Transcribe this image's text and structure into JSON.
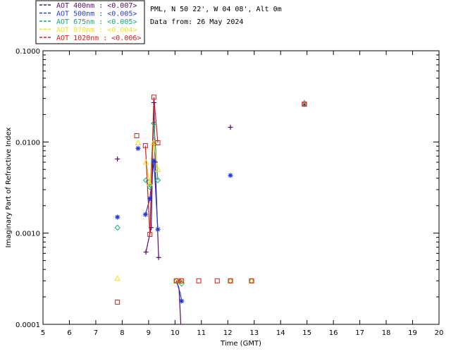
{
  "header": {
    "site": "PML, N 50 22', W 04 08', Alt 0m",
    "date": "Data from: 26 May 2024"
  },
  "chart_data": {
    "type": "scatter",
    "xlabel": "Time (GMT)",
    "ylabel": "Imaginary Part of Refractive Index",
    "xlim": [
      5,
      20
    ],
    "ylim": [
      0.0001,
      0.1
    ],
    "yscale": "log",
    "x_ticks": [
      "5",
      "6",
      "7",
      "8",
      "9",
      "10",
      "11",
      "12",
      "13",
      "14",
      "15",
      "16",
      "17",
      "18",
      "19",
      "20"
    ],
    "y_ticks": [
      "0.0001",
      "0.0010",
      "0.0100",
      "0.1000"
    ],
    "legend_placement": "top-left",
    "series": [
      {
        "name": "AOT  400nm : <0.007>",
        "color": "#5a0a6e",
        "marker": "plus",
        "points": [
          [
            7.82,
            0.0065
          ],
          [
            8.9,
            0.00062
          ],
          [
            9.1,
            0.00115
          ],
          [
            9.2,
            0.027
          ],
          [
            9.25,
            0.006
          ],
          [
            9.38,
            0.00054
          ],
          [
            10.2,
            0.0003
          ],
          [
            12.1,
            0.0145
          ],
          [
            14.9,
            0.027
          ]
        ],
        "line": [
          [
            8.9,
            0.00062
          ],
          [
            9.1,
            0.00115
          ],
          [
            9.2,
            0.027
          ],
          [
            9.25,
            0.006
          ],
          [
            9.38,
            0.00054
          ]
        ],
        "line2": [
          [
            10.05,
            0.0003
          ],
          [
            10.15,
            0.00025
          ],
          [
            10.22,
            0.0001
          ]
        ]
      },
      {
        "name": "AOT  500nm : <0.005>",
        "color": "#2238d6",
        "marker": "asterisk",
        "points": [
          [
            7.82,
            0.0015
          ],
          [
            8.6,
            0.0085
          ],
          [
            8.88,
            0.0016
          ],
          [
            9.05,
            0.0024
          ],
          [
            9.2,
            0.0062
          ],
          [
            9.35,
            0.0011
          ],
          [
            10.25,
            0.00018
          ],
          [
            12.1,
            0.0043
          ],
          [
            14.9,
            0.026
          ]
        ],
        "line": [
          [
            8.88,
            0.0016
          ],
          [
            9.05,
            0.0024
          ],
          [
            9.2,
            0.0062
          ],
          [
            9.35,
            0.0011
          ]
        ],
        "line2": [
          [
            10.05,
            0.0003
          ],
          [
            10.2,
            0.00022
          ],
          [
            10.25,
            0.00018
          ]
        ]
      },
      {
        "name": "AOT  675nm : <0.005>",
        "color": "#10a878",
        "marker": "diamond",
        "points": [
          [
            7.82,
            0.00115
          ],
          [
            8.9,
            0.0038
          ],
          [
            9.05,
            0.0032
          ],
          [
            9.2,
            0.016
          ],
          [
            9.35,
            0.0038
          ],
          [
            10.05,
            0.0003
          ],
          [
            10.25,
            0.00028
          ],
          [
            12.1,
            0.0003
          ],
          [
            12.9,
            0.0003
          ],
          [
            14.9,
            0.026
          ]
        ],
        "line": [
          [
            8.9,
            0.0038
          ],
          [
            9.05,
            0.0032
          ],
          [
            9.2,
            0.016
          ],
          [
            9.35,
            0.0038
          ]
        ],
        "line2": [
          [
            10.05,
            0.0003
          ],
          [
            10.25,
            0.00028
          ]
        ]
      },
      {
        "name": "AOT  870nm : <0.004>",
        "color": "#f0e020",
        "marker": "triangle",
        "points": [
          [
            7.82,
            0.00032
          ],
          [
            8.6,
            0.0098
          ],
          [
            8.9,
            0.006
          ],
          [
            9.05,
            0.0035
          ],
          [
            9.2,
            0.01
          ],
          [
            9.35,
            0.005
          ],
          [
            10.05,
            0.0003
          ],
          [
            10.25,
            0.0003
          ],
          [
            12.1,
            0.0003
          ],
          [
            12.9,
            0.0003
          ],
          [
            14.9,
            0.026
          ]
        ],
        "line": [
          [
            8.9,
            0.006
          ],
          [
            9.05,
            0.0035
          ],
          [
            9.2,
            0.01
          ],
          [
            9.35,
            0.005
          ]
        ],
        "line2": [
          [
            10.05,
            0.0003
          ],
          [
            10.25,
            0.0003
          ]
        ]
      },
      {
        "name": "AOT 1020nm : <0.006>",
        "color": "#e01818",
        "marker": "square",
        "points": [
          [
            7.82,
            0.000175
          ],
          [
            8.55,
            0.0117
          ],
          [
            8.88,
            0.0091
          ],
          [
            9.05,
            0.00097
          ],
          [
            9.2,
            0.031
          ],
          [
            9.35,
            0.0098
          ],
          [
            10.05,
            0.0003
          ],
          [
            10.25,
            0.0003
          ],
          [
            10.9,
            0.0003
          ],
          [
            11.6,
            0.0003
          ],
          [
            12.1,
            0.0003
          ],
          [
            12.9,
            0.0003
          ],
          [
            14.9,
            0.026
          ]
        ],
        "line": [
          [
            8.88,
            0.0091
          ],
          [
            9.05,
            0.00097
          ],
          [
            9.2,
            0.031
          ],
          [
            9.35,
            0.0098
          ]
        ],
        "line2": [
          [
            10.05,
            0.0003
          ],
          [
            10.25,
            0.0003
          ]
        ]
      }
    ]
  }
}
